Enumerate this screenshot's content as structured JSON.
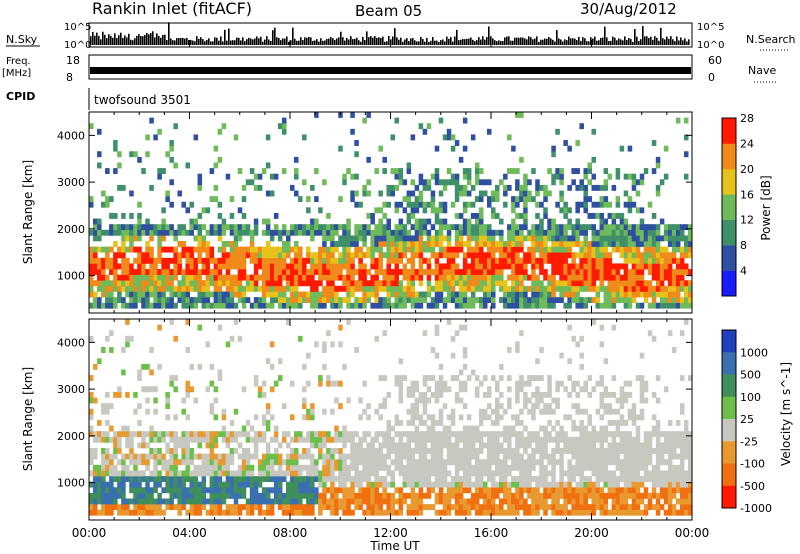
{
  "header": {
    "station": "Rankin Inlet (fitACF)",
    "beam": "Beam 05",
    "date": "30/Aug/2012"
  },
  "top_panels": {
    "nsky_label": "N.Sky",
    "nsky_ticks": [
      "10^5",
      "10^0"
    ],
    "nsearch_label": "N.Search",
    "nsearch_ticks": [
      "10^5",
      "10^0"
    ],
    "freq_label": "Freq.",
    "freq_unit": "[MHz]",
    "freq_ticks": [
      "18",
      "8"
    ],
    "nave_label": "Nave",
    "nave_ticks": [
      "60",
      "0"
    ],
    "cpid_label": "CPID",
    "cpid_value": "twofsound 3501"
  },
  "chart_data": [
    {
      "type": "heatmap",
      "name": "power",
      "ylabel": "Slant Range [km]",
      "ylim": [
        200,
        4500
      ],
      "yticks": [
        "1000",
        "2000",
        "3000",
        "4000"
      ],
      "colorbar_label": "Power [dB]",
      "colorbar_ticks": [
        "4",
        "8",
        "12",
        "16",
        "20",
        "24",
        "28"
      ],
      "colorbar_colors": [
        "#1a1aff",
        "#2f4fa0",
        "#3f8f6a",
        "#6fba5a",
        "#e6c21a",
        "#f08a1a",
        "#ff1a00"
      ]
    },
    {
      "type": "heatmap",
      "name": "velocity",
      "ylabel": "Slant Range [km]",
      "ylim": [
        200,
        4500
      ],
      "yticks": [
        "1000",
        "2000",
        "3000",
        "4000"
      ],
      "colorbar_label": "Velocity [m s^-1]",
      "colorbar_ticks": [
        "1000",
        "500",
        "100",
        "25",
        "-25",
        "-100",
        "-500",
        "-1000"
      ],
      "colorbar_colors": [
        "#2040c0",
        "#3a6fb0",
        "#3f8f5a",
        "#6cc04a",
        "#c8c8c0",
        "#e89a30",
        "#f07010",
        "#ff1a00"
      ],
      "xlabel": "Time UT",
      "xticks": [
        "00:00",
        "04:00",
        "08:00",
        "12:00",
        "16:00",
        "20:00",
        "00:00"
      ]
    }
  ]
}
